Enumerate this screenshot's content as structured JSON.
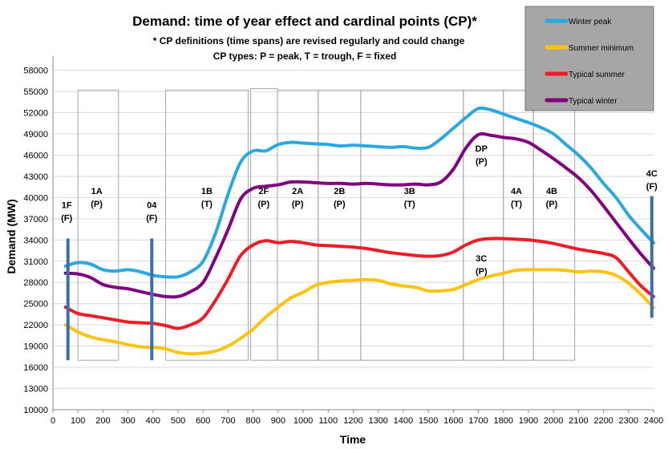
{
  "chart_data": {
    "type": "line",
    "title": "Demand: time of year effect and cardinal points (CP)*",
    "subtitle_lines": [
      "* CP definitions (time spans) are revised regularly and  could change",
      "CP types: P = peak, T = trough, F = fixed"
    ],
    "xlabel": "Time",
    "ylabel": "Demand (MW)",
    "xlim": [
      0,
      2400
    ],
    "ylim": [
      10000,
      60000
    ],
    "x_ticks": [
      0,
      100,
      200,
      300,
      400,
      500,
      600,
      700,
      800,
      900,
      1000,
      1100,
      1200,
      1300,
      1400,
      1500,
      1600,
      1700,
      1800,
      1900,
      2000,
      2100,
      2200,
      2300,
      2400
    ],
    "y_ticks": [
      10000,
      13000,
      16000,
      19000,
      22000,
      25000,
      28000,
      31000,
      34000,
      37000,
      40000,
      43000,
      46000,
      49000,
      52000,
      55000,
      58000
    ],
    "grid": "horizontal",
    "legend_position": "top-right",
    "series": [
      {
        "name": "Winter peak",
        "color": "#2aa8e0",
        "x": [
          50,
          100,
          150,
          200,
          250,
          300,
          350,
          400,
          450,
          500,
          550,
          600,
          650,
          700,
          750,
          800,
          850,
          900,
          950,
          1000,
          1050,
          1100,
          1150,
          1200,
          1250,
          1300,
          1350,
          1400,
          1450,
          1500,
          1550,
          1600,
          1650,
          1700,
          1750,
          1800,
          1850,
          1900,
          1950,
          2000,
          2050,
          2100,
          2150,
          2200,
          2250,
          2300,
          2350,
          2400
        ],
        "y": [
          30300,
          30800,
          30600,
          29800,
          29600,
          29800,
          29500,
          29000,
          28800,
          28800,
          29500,
          31000,
          35000,
          40500,
          45000,
          46600,
          46600,
          47500,
          47800,
          47700,
          47600,
          47500,
          47300,
          47400,
          47300,
          47200,
          47100,
          47200,
          47000,
          47100,
          48300,
          49800,
          51300,
          52600,
          52400,
          51800,
          51200,
          50600,
          49900,
          49000,
          47500,
          46000,
          44200,
          42000,
          40000,
          37500,
          35500,
          33600
        ]
      },
      {
        "name": "Summer minimum",
        "color": "#ffc20e",
        "x": [
          50,
          100,
          150,
          200,
          250,
          300,
          350,
          400,
          450,
          500,
          550,
          600,
          650,
          700,
          750,
          800,
          850,
          900,
          950,
          1000,
          1050,
          1100,
          1150,
          1200,
          1250,
          1300,
          1350,
          1400,
          1450,
          1500,
          1550,
          1600,
          1650,
          1700,
          1750,
          1800,
          1850,
          1900,
          1950,
          2000,
          2050,
          2100,
          2150,
          2200,
          2250,
          2300,
          2350,
          2400
        ],
        "y": [
          22000,
          21000,
          20300,
          19900,
          19600,
          19200,
          18900,
          18800,
          18600,
          18100,
          17900,
          18000,
          18300,
          19000,
          20100,
          21400,
          23100,
          24500,
          25800,
          26600,
          27600,
          28000,
          28200,
          28300,
          28400,
          28300,
          27800,
          27500,
          27300,
          26800,
          26800,
          27000,
          27700,
          28400,
          28900,
          29300,
          29700,
          29800,
          29800,
          29800,
          29700,
          29500,
          29600,
          29500,
          29000,
          27900,
          26300,
          24400
        ]
      },
      {
        "name": "Typical summer",
        "color": "#ee1c25",
        "x": [
          50,
          100,
          150,
          200,
          250,
          300,
          350,
          400,
          450,
          500,
          550,
          600,
          650,
          700,
          750,
          800,
          850,
          900,
          950,
          1000,
          1050,
          1100,
          1150,
          1200,
          1250,
          1300,
          1350,
          1400,
          1450,
          1500,
          1550,
          1600,
          1650,
          1700,
          1750,
          1800,
          1850,
          1900,
          1950,
          2000,
          2050,
          2100,
          2150,
          2200,
          2250,
          2300,
          2350,
          2400
        ],
        "y": [
          24500,
          23600,
          23300,
          23000,
          22700,
          22400,
          22300,
          22200,
          21900,
          21500,
          22000,
          23000,
          25500,
          28500,
          31800,
          33300,
          33900,
          33600,
          33800,
          33600,
          33300,
          33200,
          33100,
          33000,
          32800,
          32500,
          32200,
          32000,
          31800,
          31700,
          31800,
          32300,
          33300,
          34000,
          34200,
          34200,
          34100,
          34000,
          33800,
          33500,
          33100,
          32700,
          32400,
          32100,
          31500,
          29500,
          27500,
          26000
        ]
      },
      {
        "name": "Typical winter",
        "color": "#800080",
        "x": [
          50,
          100,
          150,
          200,
          250,
          300,
          350,
          400,
          450,
          500,
          550,
          600,
          650,
          700,
          750,
          800,
          850,
          900,
          950,
          1000,
          1050,
          1100,
          1150,
          1200,
          1250,
          1300,
          1350,
          1400,
          1450,
          1500,
          1550,
          1600,
          1650,
          1700,
          1750,
          1800,
          1850,
          1900,
          1950,
          2000,
          2050,
          2100,
          2150,
          2200,
          2250,
          2300,
          2350,
          2400
        ],
        "y": [
          29300,
          29200,
          28700,
          27700,
          27300,
          27100,
          26700,
          26300,
          26000,
          26000,
          26700,
          28000,
          31500,
          35500,
          39800,
          41300,
          41600,
          41800,
          42200,
          42200,
          42100,
          42000,
          42000,
          41900,
          42000,
          41900,
          41800,
          41800,
          41900,
          41800,
          42200,
          44000,
          47000,
          48900,
          48800,
          48500,
          48300,
          47800,
          46700,
          45500,
          44200,
          42800,
          41000,
          38800,
          36500,
          34200,
          32000,
          30000
        ]
      }
    ],
    "cardinal_points": [
      {
        "id": "1F",
        "type": "(F)",
        "x": 55,
        "bar": true,
        "label_y": 38500
      },
      {
        "id": "1A",
        "type": "(P)",
        "x": 175,
        "label_y": 40500
      },
      {
        "id": "04",
        "type": "(F)",
        "x": 395,
        "bar": true,
        "label_y": 38500
      },
      {
        "id": "1B",
        "type": "(T)",
        "x": 615,
        "label_y": 40500
      },
      {
        "id": "2F",
        "type": "(P)",
        "x": 842,
        "label_y": 40500
      },
      {
        "id": "2A",
        "type": "(P)",
        "x": 978,
        "label_y": 40500
      },
      {
        "id": "2B",
        "type": "(P)",
        "x": 1145,
        "label_y": 40500
      },
      {
        "id": "3B",
        "type": "(T)",
        "x": 1425,
        "label_y": 40500
      },
      {
        "id": "DP",
        "type": "(P)",
        "x": 1712,
        "label_y": 46500
      },
      {
        "id": "3C",
        "type": "(P)",
        "x": 1712,
        "label_y": 31000
      },
      {
        "id": "4A",
        "type": "(T)",
        "x": 1852,
        "label_y": 40500
      },
      {
        "id": "4B",
        "type": "(P)",
        "x": 1993,
        "label_y": 40500
      },
      {
        "id": "4C",
        "type": "(F)",
        "x": 2393,
        "bar": true,
        "label_y": 43000
      }
    ],
    "cp_bars": [
      {
        "x": 60,
        "y_from": 17000,
        "y_to": 34200
      },
      {
        "x": 395,
        "y_from": 17000,
        "y_to": 34200
      },
      {
        "x": 2393,
        "y_from": 23000,
        "y_to": 40200
      }
    ],
    "cp_spans": [
      {
        "x0": 100,
        "x1": 262,
        "y0": 17000,
        "y1": 55200
      },
      {
        "x0": 450,
        "x1": 780,
        "y0": 17000,
        "y1": 55200
      },
      {
        "x0": 790,
        "x1": 897,
        "y0": 17000,
        "y1": 55400
      },
      {
        "x0": 897,
        "x1": 1060,
        "y0": 17000,
        "y1": 55200
      },
      {
        "x0": 1060,
        "x1": 1230,
        "y0": 17000,
        "y1": 55200
      },
      {
        "x0": 1230,
        "x1": 1640,
        "y0": 17000,
        "y1": 55200
      },
      {
        "x0": 1640,
        "x1": 1800,
        "y0": 17000,
        "y1": 55200
      },
      {
        "x0": 1800,
        "x1": 1920,
        "y0": 17000,
        "y1": 55200
      },
      {
        "x0": 1920,
        "x1": 2085,
        "y0": 17000,
        "y1": 55200
      }
    ]
  }
}
